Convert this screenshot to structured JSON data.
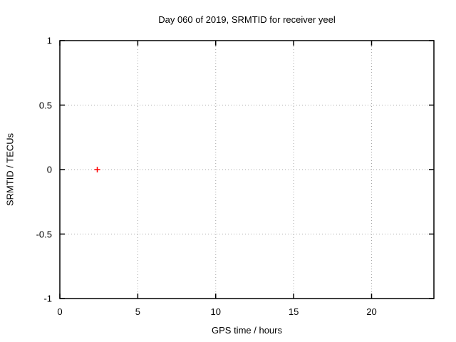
{
  "window": {
    "background": "#ffffff"
  },
  "chart_data": {
    "type": "scatter",
    "title": "Day 060 of 2019, SRMTID for receiver yeel",
    "xlabel": "GPS time / hours",
    "ylabel": "SRMTID / TECUs",
    "xlim": [
      0,
      24
    ],
    "ylim": [
      -1,
      1
    ],
    "xticks": [
      0,
      5,
      10,
      15,
      20
    ],
    "xtick_labels": [
      "0",
      "5",
      "10",
      "15",
      "20"
    ],
    "yticks": [
      -1,
      -0.5,
      0,
      0.5,
      1
    ],
    "ytick_labels": [
      "-1",
      "-0.5",
      "0",
      "0.5",
      "1"
    ],
    "grid": true,
    "legend": "none",
    "series": [
      {
        "name": "SRMTID",
        "marker": "plus",
        "color": "#ff0000",
        "points": [
          [
            2.4,
            0.0
          ]
        ]
      }
    ],
    "colors": {
      "axis": "#000000",
      "grid": "#a6a6a6",
      "text": "#000000",
      "background": "#ffffff"
    }
  }
}
